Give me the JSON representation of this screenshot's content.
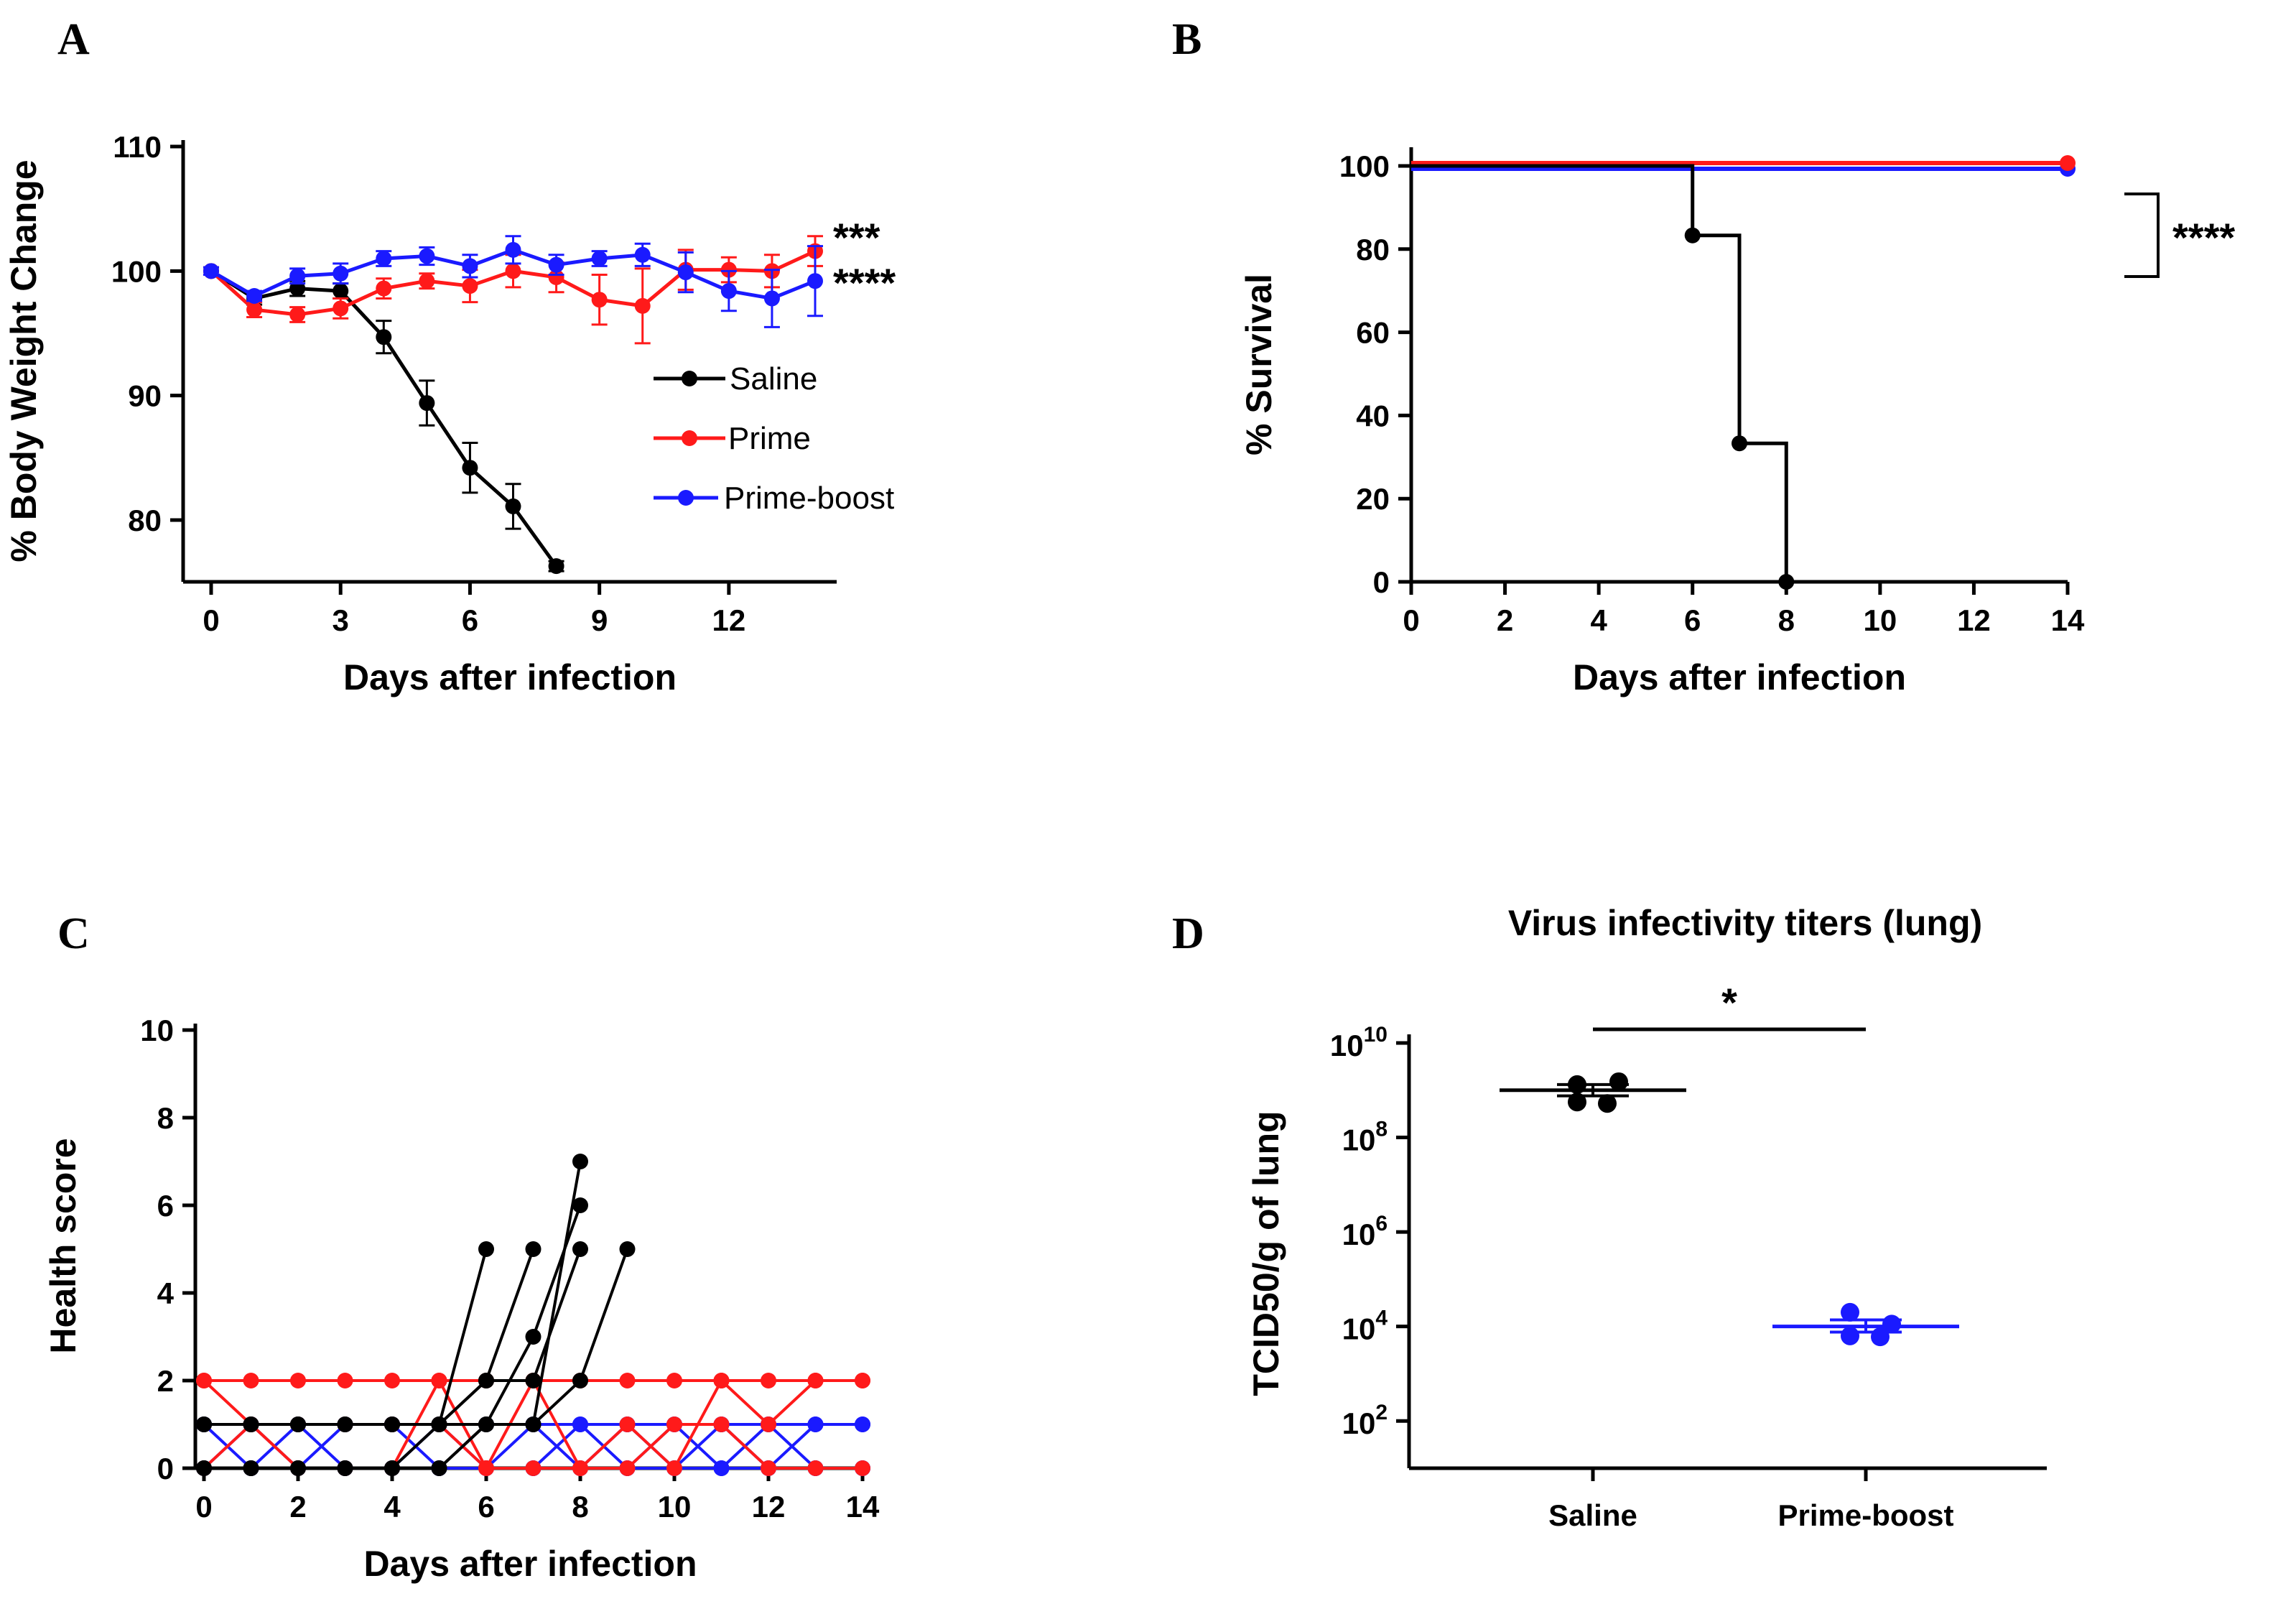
{
  "colors": {
    "saline": "#000000",
    "prime": "#ff1a1a",
    "primeboost": "#1a1aff"
  },
  "chart_data": [
    {
      "panel": "A",
      "type": "line",
      "xlabel": "Days after infection",
      "ylabel": "% Body Weight Change",
      "xlim": [
        0,
        14
      ],
      "ylim": [
        75,
        110
      ],
      "xticks": [
        "0",
        "3",
        "6",
        "9",
        "12"
      ],
      "yticks": [
        "80",
        "90",
        "100",
        "110"
      ],
      "legend": [
        "Saline",
        "Prime",
        "Prime-boost"
      ],
      "significance": [
        "***",
        "****"
      ],
      "series": [
        {
          "name": "Saline",
          "color": "#000000",
          "x": [
            0,
            1,
            2,
            3,
            4,
            5,
            6,
            7,
            8
          ],
          "y": [
            100,
            97.8,
            98.6,
            98.4,
            94.7,
            89.4,
            84.2,
            81.1,
            76.3
          ],
          "err": [
            0.3,
            0.5,
            0.6,
            0.6,
            1.3,
            1.8,
            2.0,
            1.8,
            0.4
          ]
        },
        {
          "name": "Prime",
          "color": "#ff1a1a",
          "x": [
            0,
            1,
            2,
            3,
            4,
            5,
            6,
            7,
            8,
            9,
            10,
            11,
            12,
            13,
            14
          ],
          "y": [
            100,
            96.9,
            96.5,
            97.0,
            98.6,
            99.2,
            98.8,
            100.0,
            99.5,
            97.7,
            97.2,
            100.1,
            100.1,
            100.0,
            101.6
          ],
          "err": [
            0.3,
            0.6,
            0.6,
            0.8,
            0.8,
            0.6,
            1.3,
            1.3,
            1.2,
            2.0,
            3.0,
            1.6,
            1.0,
            1.3,
            1.2
          ]
        },
        {
          "name": "Prime-boost",
          "color": "#1a1aff",
          "x": [
            0,
            1,
            2,
            3,
            4,
            5,
            6,
            7,
            8,
            9,
            10,
            11,
            12,
            13,
            14
          ],
          "y": [
            100,
            98.0,
            99.6,
            99.8,
            101.0,
            101.2,
            100.4,
            101.7,
            100.5,
            101.0,
            101.3,
            99.9,
            98.4,
            97.8,
            99.2
          ],
          "err": [
            0.3,
            0.4,
            0.6,
            0.8,
            0.6,
            0.7,
            0.9,
            1.1,
            0.8,
            0.6,
            0.9,
            1.6,
            1.6,
            2.3,
            2.8
          ]
        }
      ]
    },
    {
      "panel": "B",
      "type": "line",
      "subtype": "survival-step",
      "xlabel": "Days after infection",
      "ylabel": "% Survival",
      "xlim": [
        0,
        14
      ],
      "ylim": [
        0,
        100
      ],
      "xticks": [
        "0",
        "2",
        "4",
        "6",
        "8",
        "10",
        "12",
        "14"
      ],
      "yticks": [
        "0",
        "20",
        "40",
        "60",
        "80",
        "100"
      ],
      "significance": "****",
      "series": [
        {
          "name": "Saline",
          "color": "#000000",
          "x": [
            0,
            6,
            7,
            8
          ],
          "y": [
            100,
            83.3,
            33.3,
            0
          ]
        },
        {
          "name": "Prime",
          "color": "#ff1a1a",
          "x": [
            0,
            14
          ],
          "y": [
            100,
            100
          ]
        },
        {
          "name": "Prime-boost",
          "color": "#1a1aff",
          "x": [
            0,
            14
          ],
          "y": [
            100,
            100
          ]
        }
      ]
    },
    {
      "panel": "C",
      "type": "line",
      "subtype": "individual-scores",
      "xlabel": "Days after infection",
      "ylabel": "Health score",
      "xlim": [
        0,
        14
      ],
      "ylim": [
        0,
        10
      ],
      "xticks": [
        "0",
        "2",
        "4",
        "6",
        "8",
        "10",
        "12",
        "14"
      ],
      "yticks": [
        "0",
        "2",
        "4",
        "6",
        "8",
        "10"
      ],
      "series": [
        {
          "name": "Saline",
          "color": "#000000",
          "x": [
            0,
            1,
            2,
            3,
            4,
            5,
            6
          ],
          "y": [
            1,
            1,
            1,
            1,
            1,
            1,
            5
          ]
        },
        {
          "name": "Saline",
          "color": "#000000",
          "x": [
            0,
            1,
            2,
            3,
            4,
            5,
            6,
            7
          ],
          "y": [
            1,
            1,
            1,
            1,
            1,
            1,
            2,
            5
          ]
        },
        {
          "name": "Saline",
          "color": "#000000",
          "x": [
            0,
            1,
            2,
            3,
            4,
            5,
            6,
            7,
            8
          ],
          "y": [
            0,
            0,
            0,
            0,
            0,
            1,
            1,
            1,
            7
          ]
        },
        {
          "name": "Saline",
          "color": "#000000",
          "x": [
            0,
            1,
            2,
            3,
            4,
            5,
            6,
            7,
            8
          ],
          "y": [
            0,
            0,
            0,
            0,
            0,
            0,
            1,
            3,
            6
          ]
        },
        {
          "name": "Saline",
          "color": "#000000",
          "x": [
            0,
            1,
            2,
            3,
            4,
            5,
            6,
            7,
            8
          ],
          "y": [
            1,
            1,
            1,
            1,
            1,
            1,
            2,
            2,
            5
          ]
        },
        {
          "name": "Saline",
          "color": "#000000",
          "x": [
            0,
            1,
            2,
            3,
            4,
            5,
            6,
            7,
            8,
            9
          ],
          "y": [
            0,
            0,
            0,
            0,
            0,
            0,
            1,
            1,
            2,
            5
          ]
        },
        {
          "name": "Prime",
          "color": "#ff1a1a",
          "x": [
            0,
            1,
            2,
            3,
            4,
            5,
            6,
            7,
            8,
            9,
            10,
            11,
            12,
            13,
            14
          ],
          "y": [
            2,
            2,
            2,
            2,
            2,
            2,
            2,
            2,
            2,
            2,
            2,
            2,
            2,
            2,
            2
          ]
        },
        {
          "name": "Prime",
          "color": "#ff1a1a",
          "x": [
            0,
            1,
            2,
            3,
            4,
            5,
            6,
            7,
            8,
            9,
            10,
            11,
            12,
            13,
            14
          ],
          "y": [
            0,
            1,
            0,
            0,
            0,
            2,
            0,
            0,
            0,
            0,
            1,
            1,
            0,
            0,
            0
          ]
        },
        {
          "name": "Prime",
          "color": "#ff1a1a",
          "x": [
            0,
            1,
            2,
            3,
            4,
            5,
            6,
            7,
            8,
            9,
            10,
            11,
            12,
            13,
            14
          ],
          "y": [
            2,
            1,
            1,
            1,
            1,
            1,
            0,
            2,
            0,
            1,
            0,
            2,
            1,
            2,
            2
          ]
        },
        {
          "name": "Prime-boost",
          "color": "#1a1aff",
          "x": [
            0,
            1,
            2,
            3,
            4,
            5,
            6,
            7,
            8,
            9,
            10,
            11,
            12,
            13,
            14
          ],
          "y": [
            1,
            1,
            1,
            1,
            1,
            1,
            1,
            1,
            1,
            1,
            1,
            1,
            1,
            1,
            1
          ]
        },
        {
          "name": "Prime-boost",
          "color": "#1a1aff",
          "x": [
            0,
            1,
            2,
            3,
            4,
            5,
            6,
            7,
            8,
            9,
            10,
            11,
            12,
            13,
            14
          ],
          "y": [
            0,
            0,
            0,
            0,
            0,
            0,
            0,
            0,
            0,
            0,
            0,
            0,
            0,
            0,
            0
          ]
        },
        {
          "name": "Prime-boost",
          "color": "#1a1aff",
          "x": [
            0,
            1,
            2,
            3,
            4,
            5,
            6,
            7,
            8,
            9,
            10,
            11,
            12,
            13,
            14
          ],
          "y": [
            0,
            1,
            0,
            1,
            1,
            0,
            0,
            1,
            0,
            1,
            0,
            1,
            0,
            1,
            1
          ]
        },
        {
          "name": "Prime-boost",
          "color": "#1a1aff",
          "x": [
            0,
            1,
            2,
            3,
            4,
            5,
            6,
            7,
            8,
            9,
            10,
            11,
            12,
            13,
            14
          ],
          "y": [
            1,
            0,
            1,
            0,
            0,
            1,
            0,
            0,
            1,
            0,
            1,
            0,
            1,
            0,
            0
          ]
        }
      ]
    },
    {
      "panel": "D",
      "type": "scatter",
      "subtype": "dot-plot",
      "title": "Virus infectivity titers (lung)",
      "xlabel": "",
      "ylabel": "TCID50/g of lung",
      "categories": [
        "Saline",
        "Prime-boost"
      ],
      "yscale": "log",
      "ylim_log10": [
        1,
        10
      ],
      "ytick_exponents": [
        "10",
        "8",
        "6",
        "4",
        "2"
      ],
      "ytick_base": "10",
      "significance": "*",
      "series": [
        {
          "name": "Saline",
          "color": "#000000",
          "log10_values": [
            9.12,
            9.18,
            8.75,
            8.72
          ],
          "mean_log10": 9.0,
          "sem_log10_range": [
            8.88,
            9.12
          ]
        },
        {
          "name": "Prime-boost",
          "color": "#1a1aff",
          "log10_values": [
            4.3,
            4.05,
            3.8,
            3.78
          ],
          "mean_log10": 4.0,
          "sem_log10_range": [
            3.88,
            4.14
          ]
        }
      ]
    }
  ],
  "panels": {
    "a": {
      "letter": "A",
      "legend_saline": "Saline",
      "legend_prime": "Prime",
      "legend_primeboost": "Prime-boost",
      "sig_prime": "***",
      "sig_primeboost": "****"
    },
    "b": {
      "letter": "B",
      "sig": "****"
    },
    "c": {
      "letter": "C"
    },
    "d": {
      "letter": "D"
    }
  }
}
